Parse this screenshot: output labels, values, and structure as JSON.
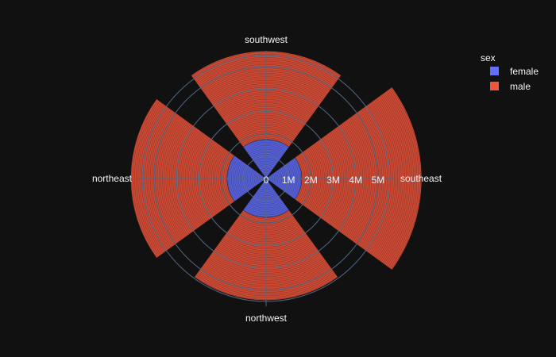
{
  "chart_data": {
    "type": "barpolar",
    "title": "",
    "angular_categories": [
      "southwest",
      "southeast",
      "northwest",
      "northeast"
    ],
    "angular_direction": "clockwise",
    "angular_rotation_deg": 90,
    "radial_range": [
      0,
      5500000
    ],
    "radial_ticks": [
      0,
      1000000,
      2000000,
      3000000,
      4000000,
      5000000
    ],
    "radial_tick_labels": [
      "0",
      "1M",
      "2M",
      "3M",
      "4M",
      "5M"
    ],
    "bar_width_fraction": 0.8,
    "stack_mode": "stacked",
    "series": [
      {
        "name": "female",
        "color": "#636efa",
        "values": {
          "southwest": 1750000,
          "southeast": 1600000,
          "northwest": 1750000,
          "northeast": 1750000
        }
      },
      {
        "name": "male",
        "color": "#ef553b",
        "values": {
          "southwest": 3950000,
          "southeast": 5350000,
          "northwest": 3700000,
          "northeast": 4300000
        }
      }
    ],
    "legend": {
      "title": "sex",
      "position": "top-right"
    },
    "background": "#111111",
    "grid_color": "#506784",
    "text_color": "#f2f5fa"
  }
}
